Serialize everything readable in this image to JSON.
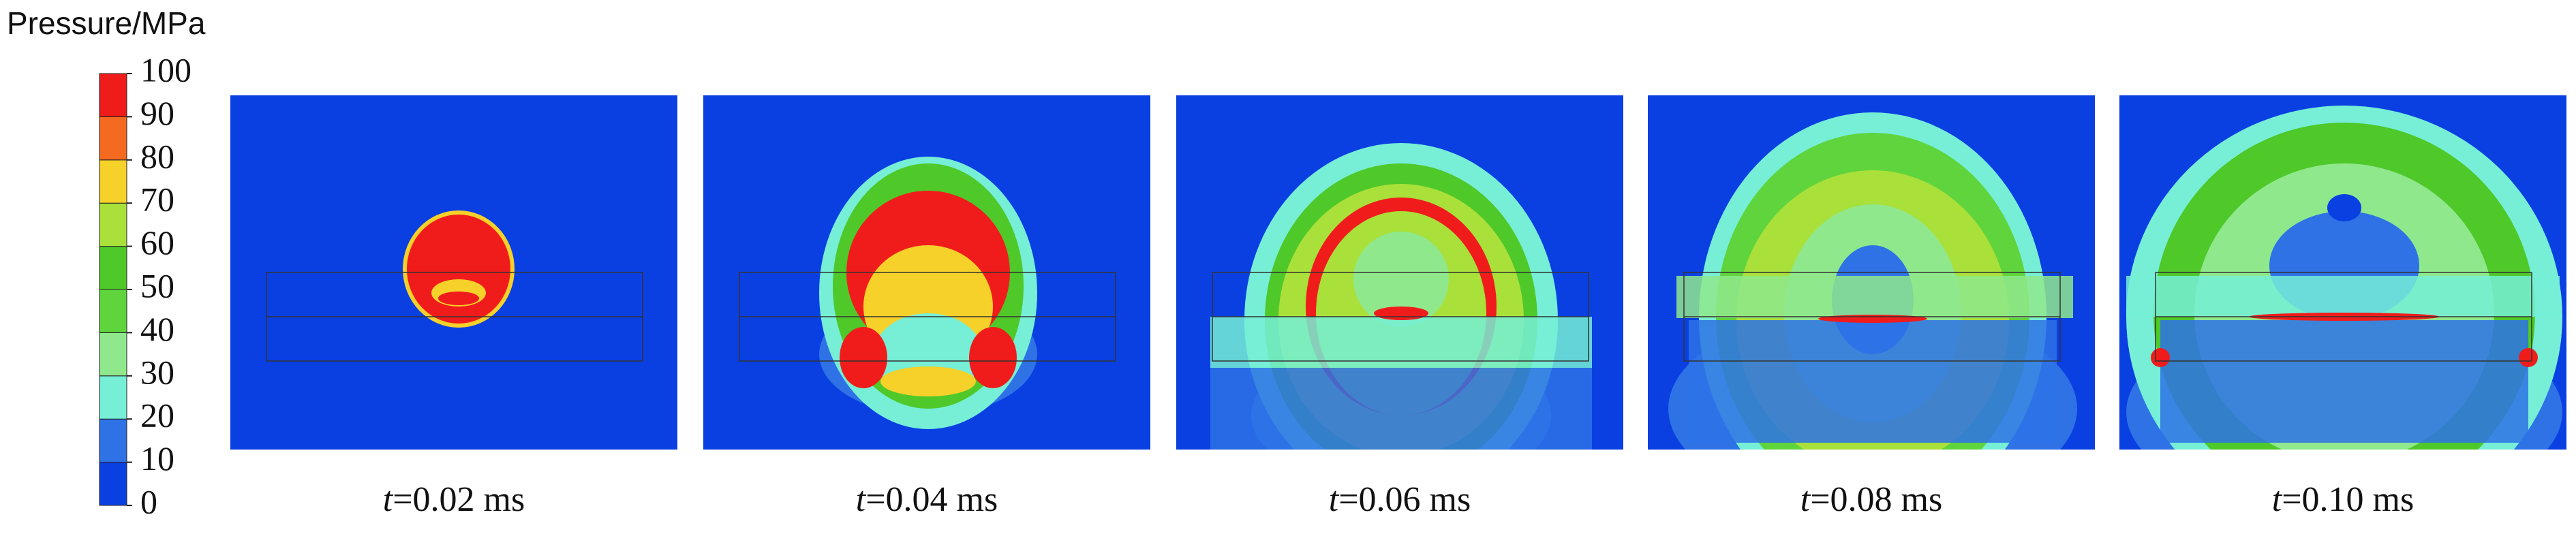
{
  "chart_data": {
    "type": "contour",
    "colorbar_title": "Pressure/MPa",
    "levels": [
      0,
      10,
      20,
      30,
      40,
      50,
      60,
      70,
      80,
      90,
      100
    ],
    "colors": [
      "#0a3fe2",
      "#2e72e6",
      "#76efd6",
      "#8fe88c",
      "#5fd43c",
      "#4fc82a",
      "#a9e03a",
      "#f6d12a",
      "#f46a20",
      "#f01c1c"
    ],
    "panels": [
      {
        "var": "t",
        "label": "=0.02 ms"
      },
      {
        "var": "t",
        "label": "=0.04 ms"
      },
      {
        "var": "t",
        "label": "=0.06 ms"
      },
      {
        "var": "t",
        "label": "=0.08 ms"
      },
      {
        "var": "t",
        "label": "=0.10 ms"
      }
    ]
  }
}
